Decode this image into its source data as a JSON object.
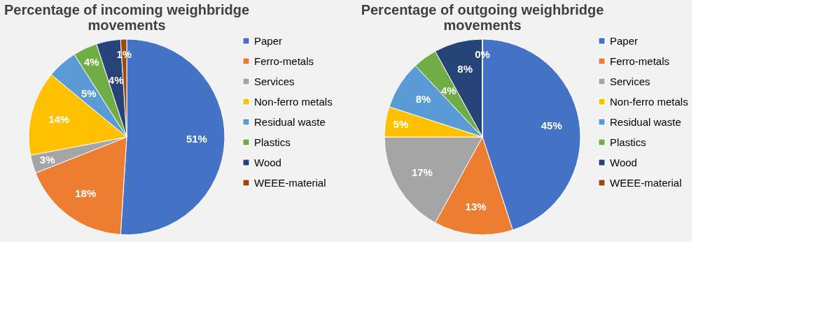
{
  "chart_data": [
    {
      "type": "pie",
      "title": "Percentage of incoming weighbridge movements",
      "categories": [
        "Paper",
        "Ferro-metals",
        "Services",
        "Non-ferro metals",
        "Residual waste",
        "Plastics",
        "Wood",
        "WEEE-material"
      ],
      "values": [
        51,
        18,
        3,
        14,
        5,
        4,
        4,
        1
      ],
      "colors": [
        "#4472c4",
        "#ed7d31",
        "#a5a5a5",
        "#ffc000",
        "#5b9bd5",
        "#70ad47",
        "#264478",
        "#9e480e"
      ],
      "value_labels": [
        "51%",
        "18%",
        "3%",
        "14%",
        "5%",
        "4%",
        "4%",
        "1%"
      ],
      "legend": "right"
    },
    {
      "type": "pie",
      "title": "Percentage of outgoing weighbridge movements",
      "categories": [
        "Paper",
        "Ferro-metals",
        "Services",
        "Non-ferro metals",
        "Residual waste",
        "Plastics",
        "Wood",
        "WEEE-material"
      ],
      "values": [
        45,
        13,
        17,
        5,
        8,
        4,
        8,
        0
      ],
      "colors": [
        "#4472c4",
        "#ed7d31",
        "#a5a5a5",
        "#ffc000",
        "#5b9bd5",
        "#70ad47",
        "#264478",
        "#9e480e"
      ],
      "value_labels": [
        "45%",
        "13%",
        "17%",
        "5%",
        "8%",
        "4%",
        "8%",
        "0%"
      ],
      "legend": "right"
    }
  ]
}
